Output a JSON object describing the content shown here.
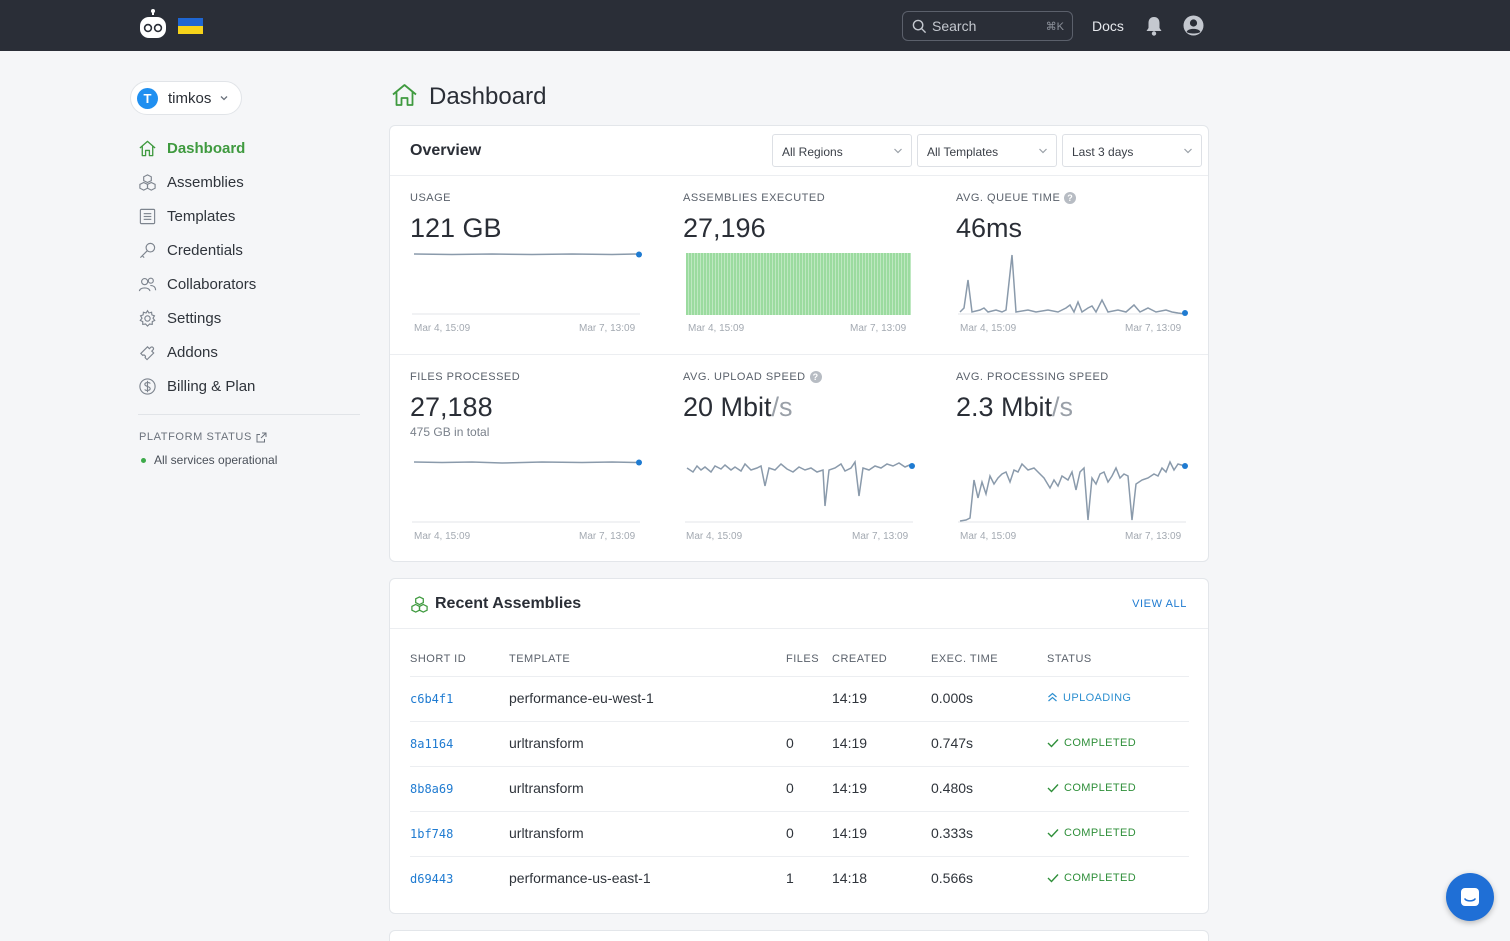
{
  "topbar": {
    "search_placeholder": "Search",
    "search_shortcut": "⌘K",
    "docs": "Docs"
  },
  "account": {
    "initial": "T",
    "name": "timkos"
  },
  "sidebar": {
    "items": [
      {
        "label": "Dashboard",
        "icon": "home-icon",
        "active": true
      },
      {
        "label": "Assemblies",
        "icon": "assemblies-icon"
      },
      {
        "label": "Templates",
        "icon": "templates-icon"
      },
      {
        "label": "Credentials",
        "icon": "key-icon"
      },
      {
        "label": "Collaborators",
        "icon": "users-icon"
      },
      {
        "label": "Settings",
        "icon": "gear-icon"
      },
      {
        "label": "Addons",
        "icon": "addons-icon"
      },
      {
        "label": "Billing & Plan",
        "icon": "dollar-icon"
      }
    ],
    "platform_status": "PLATFORM STATUS",
    "status_text": "All services operational"
  },
  "page": {
    "title": "Dashboard"
  },
  "overview": {
    "title": "Overview",
    "filters": {
      "region": "All Regions",
      "template": "All Templates",
      "range": "Last 3 days"
    },
    "axis_start": "Mar 4, 15:09",
    "axis_end": "Mar 7, 13:09",
    "metrics": {
      "usage": {
        "label": "USAGE",
        "value": "121 GB"
      },
      "assemblies": {
        "label": "ASSEMBLIES EXECUTED",
        "value": "27,196"
      },
      "queue": {
        "label": "AVG. QUEUE TIME",
        "value": "46ms",
        "help": "?"
      },
      "files": {
        "label": "FILES PROCESSED",
        "value": "27,188",
        "sub": "475 GB in total"
      },
      "upload": {
        "label": "AVG. UPLOAD SPEED",
        "value": "20 Mbit",
        "unit": "/s",
        "help": "?"
      },
      "processing": {
        "label": "AVG. PROCESSING SPEED",
        "value": "2.3 Mbit",
        "unit": "/s"
      }
    }
  },
  "recent": {
    "title": "Recent Assemblies",
    "view_all": "VIEW ALL",
    "columns": [
      "SHORT ID",
      "TEMPLATE",
      "FILES",
      "CREATED",
      "EXEC. TIME",
      "STATUS"
    ],
    "rows": [
      {
        "id": "c6b4f1",
        "template": "performance-eu-west-1",
        "files": "",
        "created": "14:19",
        "exec": "0.000s",
        "status": "UPLOADING"
      },
      {
        "id": "8a1164",
        "template": "urltransform",
        "files": "0",
        "created": "14:19",
        "exec": "0.747s",
        "status": "COMPLETED"
      },
      {
        "id": "8b8a69",
        "template": "urltransform",
        "files": "0",
        "created": "14:19",
        "exec": "0.480s",
        "status": "COMPLETED"
      },
      {
        "id": "1bf748",
        "template": "urltransform",
        "files": "0",
        "created": "14:19",
        "exec": "0.333s",
        "status": "COMPLETED"
      },
      {
        "id": "d69443",
        "template": "performance-us-east-1",
        "files": "1",
        "created": "14:18",
        "exec": "0.566s",
        "status": "COMPLETED"
      }
    ]
  },
  "colors": {
    "accent_green": "#3f9a3f",
    "link_blue": "#1f7bd1",
    "topbar": "#2a2e37",
    "bars": "#9bdb9f"
  }
}
